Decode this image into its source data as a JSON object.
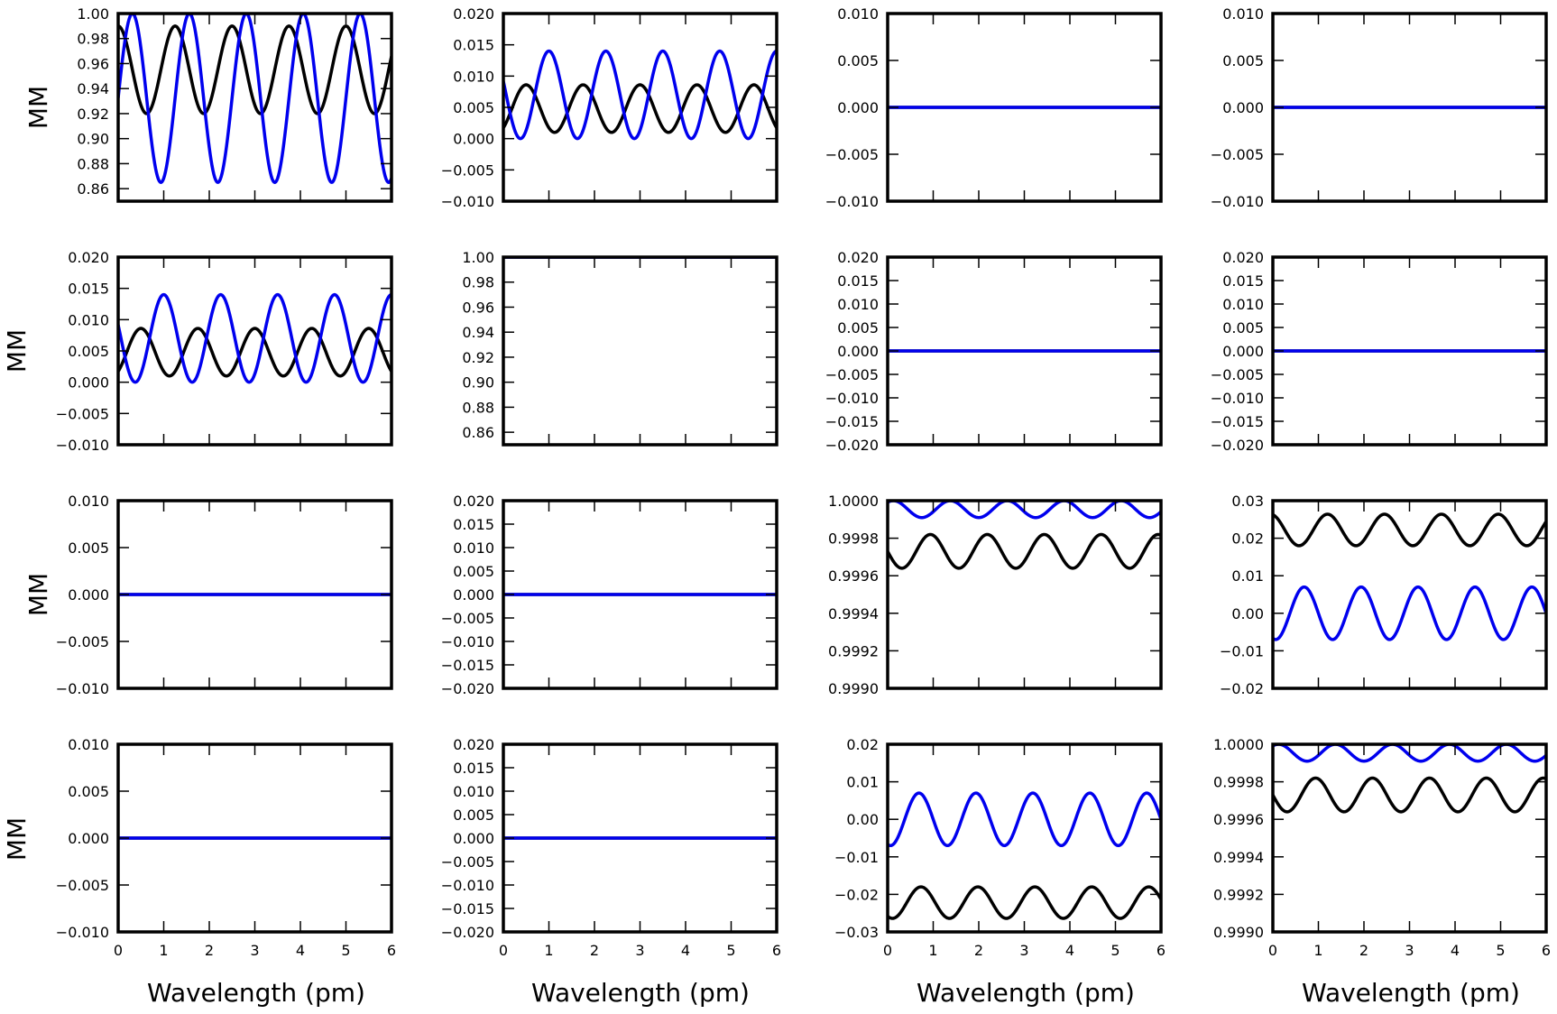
{
  "figure": {
    "xlabel": "Wavelength (pm)",
    "ylabel": "MM",
    "x_ticks": [
      0,
      1,
      2,
      3,
      4,
      5,
      6
    ],
    "x_tick_labels": [
      "0",
      "1",
      "2",
      "3",
      "4",
      "5",
      "6"
    ]
  },
  "colors": {
    "black": "#000000",
    "blue": "#0000ee"
  },
  "chart_data": [
    {
      "type": "line",
      "row": 0,
      "col": 0,
      "ylim": [
        0.85,
        1.0
      ],
      "yticks": [
        0.86,
        0.88,
        0.9,
        0.92,
        0.94,
        0.96,
        0.98,
        1.0
      ],
      "ytick_labels": [
        "0.86",
        "0.88",
        "0.90",
        "0.92",
        "0.94",
        "0.96",
        "0.98",
        "1.00"
      ],
      "series": [
        {
          "name": "black",
          "color": "#000000",
          "offset": 0.955,
          "amp": 0.035,
          "period": 1.25,
          "phase": 0.0
        },
        {
          "name": "blue",
          "color": "#0000ee",
          "offset": 0.9325,
          "amp": 0.0675,
          "period": 1.25,
          "phase": 0.25
        }
      ]
    },
    {
      "type": "line",
      "row": 0,
      "col": 1,
      "ylim": [
        -0.01,
        0.02
      ],
      "yticks": [
        -0.01,
        -0.005,
        0,
        0.005,
        0.01,
        0.015,
        0.02
      ],
      "ytick_labels": [
        "−0.010",
        "−0.005",
        "0.000",
        "0.005",
        "0.010",
        "0.015",
        "0.020"
      ],
      "series": [
        {
          "name": "black",
          "color": "#000000",
          "offset": 0.0048,
          "amp": 0.0038,
          "period": 1.25,
          "phase": 0.4
        },
        {
          "name": "blue",
          "color": "#0000ee",
          "offset": 0.007,
          "amp": 0.007,
          "period": 1.25,
          "phase": -0.2
        }
      ]
    },
    {
      "type": "line",
      "row": 0,
      "col": 2,
      "ylim": [
        -0.01,
        0.01
      ],
      "yticks": [
        -0.01,
        -0.005,
        0,
        0.005,
        0.01
      ],
      "ytick_labels": [
        "−0.010",
        "−0.005",
        "0.000",
        "0.005",
        "0.010"
      ],
      "series": [
        {
          "name": "black",
          "color": "#000000",
          "offset": 0,
          "amp": 0,
          "period": 1.25,
          "phase": 0
        },
        {
          "name": "blue",
          "color": "#0000ee",
          "offset": 0,
          "amp": 0,
          "period": 1.25,
          "phase": 0
        }
      ]
    },
    {
      "type": "line",
      "row": 0,
      "col": 3,
      "ylim": [
        -0.01,
        0.01
      ],
      "yticks": [
        -0.01,
        -0.005,
        0,
        0.005,
        0.01
      ],
      "ytick_labels": [
        "−0.010",
        "−0.005",
        "0.000",
        "0.005",
        "0.010"
      ],
      "series": [
        {
          "name": "black",
          "color": "#000000",
          "offset": 0,
          "amp": 0,
          "period": 1.25,
          "phase": 0
        },
        {
          "name": "blue",
          "color": "#0000ee",
          "offset": 0,
          "amp": 0,
          "period": 1.25,
          "phase": 0
        }
      ]
    },
    {
      "type": "line",
      "row": 1,
      "col": 0,
      "ylim": [
        -0.01,
        0.02
      ],
      "yticks": [
        -0.01,
        -0.005,
        0,
        0.005,
        0.01,
        0.015,
        0.02
      ],
      "ytick_labels": [
        "−0.010",
        "−0.005",
        "0.000",
        "0.005",
        "0.010",
        "0.015",
        "0.020"
      ],
      "series": [
        {
          "name": "black",
          "color": "#000000",
          "offset": 0.0048,
          "amp": 0.0038,
          "period": 1.25,
          "phase": 0.4
        },
        {
          "name": "blue",
          "color": "#0000ee",
          "offset": 0.007,
          "amp": 0.007,
          "period": 1.25,
          "phase": -0.2
        }
      ]
    },
    {
      "type": "line",
      "row": 1,
      "col": 1,
      "ylim": [
        0.85,
        1.0
      ],
      "yticks": [
        0.86,
        0.88,
        0.9,
        0.92,
        0.94,
        0.96,
        0.98,
        1.0
      ],
      "ytick_labels": [
        "0.86",
        "0.88",
        "0.90",
        "0.92",
        "0.94",
        "0.96",
        "0.98",
        "1.00"
      ],
      "series": [
        {
          "name": "black",
          "color": "#000000",
          "offset": 1.0,
          "amp": 0,
          "period": 1.25,
          "phase": 0
        },
        {
          "name": "blue",
          "color": "#0000ee",
          "offset": 1.0,
          "amp": 0,
          "period": 1.25,
          "phase": 0
        }
      ]
    },
    {
      "type": "line",
      "row": 1,
      "col": 2,
      "ylim": [
        -0.02,
        0.02
      ],
      "yticks": [
        -0.02,
        -0.015,
        -0.01,
        -0.005,
        0,
        0.005,
        0.01,
        0.015,
        0.02
      ],
      "ytick_labels": [
        "−0.020",
        "−0.015",
        "−0.010",
        "−0.005",
        "0.000",
        "0.005",
        "0.010",
        "0.015",
        "0.020"
      ],
      "series": [
        {
          "name": "black",
          "color": "#000000",
          "offset": 0,
          "amp": 0,
          "period": 1.25,
          "phase": 0
        },
        {
          "name": "blue",
          "color": "#0000ee",
          "offset": 0,
          "amp": 0,
          "period": 1.25,
          "phase": 0
        }
      ]
    },
    {
      "type": "line",
      "row": 1,
      "col": 3,
      "ylim": [
        -0.02,
        0.02
      ],
      "yticks": [
        -0.02,
        -0.015,
        -0.01,
        -0.005,
        0,
        0.005,
        0.01,
        0.015,
        0.02
      ],
      "ytick_labels": [
        "−0.020",
        "−0.015",
        "−0.010",
        "−0.005",
        "0.000",
        "0.005",
        "0.010",
        "0.015",
        "0.020"
      ],
      "series": [
        {
          "name": "black",
          "color": "#000000",
          "offset": 0,
          "amp": 0,
          "period": 1.25,
          "phase": 0
        },
        {
          "name": "blue",
          "color": "#0000ee",
          "offset": 0,
          "amp": 0,
          "period": 1.25,
          "phase": 0
        }
      ]
    },
    {
      "type": "line",
      "row": 2,
      "col": 0,
      "ylim": [
        -0.01,
        0.01
      ],
      "yticks": [
        -0.01,
        -0.005,
        0,
        0.005,
        0.01
      ],
      "ytick_labels": [
        "−0.010",
        "−0.005",
        "0.000",
        "0.005",
        "0.010"
      ],
      "series": [
        {
          "name": "black",
          "color": "#000000",
          "offset": 0,
          "amp": 0,
          "period": 1.25,
          "phase": 0
        },
        {
          "name": "blue",
          "color": "#0000ee",
          "offset": 0,
          "amp": 0,
          "period": 1.25,
          "phase": 0
        }
      ]
    },
    {
      "type": "line",
      "row": 2,
      "col": 1,
      "ylim": [
        -0.02,
        0.02
      ],
      "yticks": [
        -0.02,
        -0.015,
        -0.01,
        -0.005,
        0,
        0.005,
        0.01,
        0.015,
        0.02
      ],
      "ytick_labels": [
        "−0.020",
        "−0.015",
        "−0.010",
        "−0.005",
        "0.000",
        "0.005",
        "0.010",
        "0.015",
        "0.020"
      ],
      "series": [
        {
          "name": "black",
          "color": "#000000",
          "offset": 0,
          "amp": 0,
          "period": 1.25,
          "phase": 0
        },
        {
          "name": "blue",
          "color": "#0000ee",
          "offset": 0,
          "amp": 0,
          "period": 1.25,
          "phase": 0
        }
      ]
    },
    {
      "type": "line",
      "row": 2,
      "col": 2,
      "ylim": [
        0.999,
        1.0
      ],
      "yticks": [
        0.999,
        0.9992,
        0.9994,
        0.9996,
        0.9998,
        1.0
      ],
      "ytick_labels": [
        "0.9990",
        "0.9992",
        "0.9994",
        "0.9996",
        "0.9998",
        "1.0000"
      ],
      "series": [
        {
          "name": "black",
          "color": "#000000",
          "offset": 0.99973,
          "amp": 9e-05,
          "period": 1.25,
          "phase": -0.25
        },
        {
          "name": "blue",
          "color": "#0000ee",
          "offset": 0.999955,
          "amp": 4.5e-05,
          "period": 1.25,
          "phase": 0.1
        }
      ]
    },
    {
      "type": "line",
      "row": 2,
      "col": 3,
      "ylim": [
        -0.02,
        0.03
      ],
      "yticks": [
        -0.02,
        -0.01,
        0,
        0.01,
        0.02,
        0.03
      ],
      "ytick_labels": [
        "−0.02",
        "−0.01",
        "0.00",
        "0.01",
        "0.02",
        "0.03"
      ],
      "series": [
        {
          "name": "black",
          "color": "#000000",
          "offset": 0.0222,
          "amp": 0.0042,
          "period": 1.25,
          "phase": -0.04
        },
        {
          "name": "blue",
          "color": "#0000ee",
          "offset": 0.0,
          "amp": 0.007,
          "period": 1.25,
          "phase": -0.45
        }
      ]
    },
    {
      "type": "line",
      "row": 3,
      "col": 0,
      "ylim": [
        -0.01,
        0.01
      ],
      "yticks": [
        -0.01,
        -0.005,
        0,
        0.005,
        0.01
      ],
      "ytick_labels": [
        "−0.010",
        "−0.005",
        "0.000",
        "0.005",
        "0.010"
      ],
      "series": [
        {
          "name": "black",
          "color": "#000000",
          "offset": 0,
          "amp": 0,
          "period": 1.25,
          "phase": 0
        },
        {
          "name": "blue",
          "color": "#0000ee",
          "offset": 0,
          "amp": 0,
          "period": 1.25,
          "phase": 0
        }
      ]
    },
    {
      "type": "line",
      "row": 3,
      "col": 1,
      "ylim": [
        -0.02,
        0.02
      ],
      "yticks": [
        -0.02,
        -0.015,
        -0.01,
        -0.005,
        0,
        0.005,
        0.01,
        0.015,
        0.02
      ],
      "ytick_labels": [
        "−0.020",
        "−0.015",
        "−0.010",
        "−0.005",
        "0.000",
        "0.005",
        "0.010",
        "0.015",
        "0.020"
      ],
      "series": [
        {
          "name": "black",
          "color": "#000000",
          "offset": 0,
          "amp": 0,
          "period": 1.25,
          "phase": 0
        },
        {
          "name": "blue",
          "color": "#0000ee",
          "offset": 0,
          "amp": 0,
          "period": 1.25,
          "phase": 0
        }
      ]
    },
    {
      "type": "line",
      "row": 3,
      "col": 2,
      "ylim": [
        -0.03,
        0.02
      ],
      "yticks": [
        -0.03,
        -0.02,
        -0.01,
        0,
        0.01,
        0.02
      ],
      "ytick_labels": [
        "−0.03",
        "−0.02",
        "−0.01",
        "0.00",
        "0.01",
        "0.02"
      ],
      "series": [
        {
          "name": "black",
          "color": "#000000",
          "offset": -0.0222,
          "amp": 0.0042,
          "period": 1.25,
          "phase": 0.585
        },
        {
          "name": "blue",
          "color": "#0000ee",
          "offset": 0.0,
          "amp": 0.007,
          "period": 1.25,
          "phase": -0.45
        }
      ]
    },
    {
      "type": "line",
      "row": 3,
      "col": 3,
      "ylim": [
        0.999,
        1.0
      ],
      "yticks": [
        0.999,
        0.9992,
        0.9994,
        0.9996,
        0.9998,
        1.0
      ],
      "ytick_labels": [
        "0.9990",
        "0.9992",
        "0.9994",
        "0.9996",
        "0.9998",
        "1.0000"
      ],
      "series": [
        {
          "name": "black",
          "color": "#000000",
          "offset": 0.99973,
          "amp": 9e-05,
          "period": 1.25,
          "phase": -0.25
        },
        {
          "name": "blue",
          "color": "#0000ee",
          "offset": 0.999955,
          "amp": 4.5e-05,
          "period": 1.25,
          "phase": 0.1
        }
      ]
    }
  ]
}
